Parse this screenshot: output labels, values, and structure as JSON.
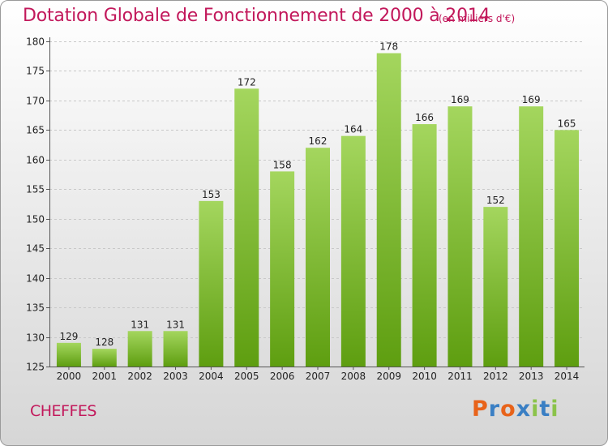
{
  "header": {
    "title": "Dotation Globale de Fonctionnement de 2000 à 2014",
    "unit": "(en milliers d'€)"
  },
  "footer": {
    "commune": "CHEFFES",
    "logo": "Proxiti"
  },
  "colors": {
    "title": "#c2185b",
    "bar_light": "#a4d65e",
    "bar_dark": "#5e9e10",
    "logo_letters": [
      "#e8631a",
      "#3a7fc4",
      "#e8631a",
      "#3a7fc4",
      "#8bc34a",
      "#3a7fc4",
      "#8bc34a"
    ]
  },
  "chart_data": {
    "type": "bar",
    "categories": [
      "2000",
      "2001",
      "2002",
      "2003",
      "2004",
      "2005",
      "2006",
      "2007",
      "2008",
      "2009",
      "2010",
      "2011",
      "2012",
      "2013",
      "2014"
    ],
    "values": [
      129,
      128,
      131,
      131,
      153,
      172,
      158,
      162,
      164,
      178,
      166,
      169,
      152,
      169,
      165
    ],
    "ylim": [
      125,
      180
    ],
    "yticks": [
      125,
      130,
      135,
      140,
      145,
      150,
      155,
      160,
      165,
      170,
      175,
      180
    ],
    "grid": true,
    "legend": "none"
  }
}
